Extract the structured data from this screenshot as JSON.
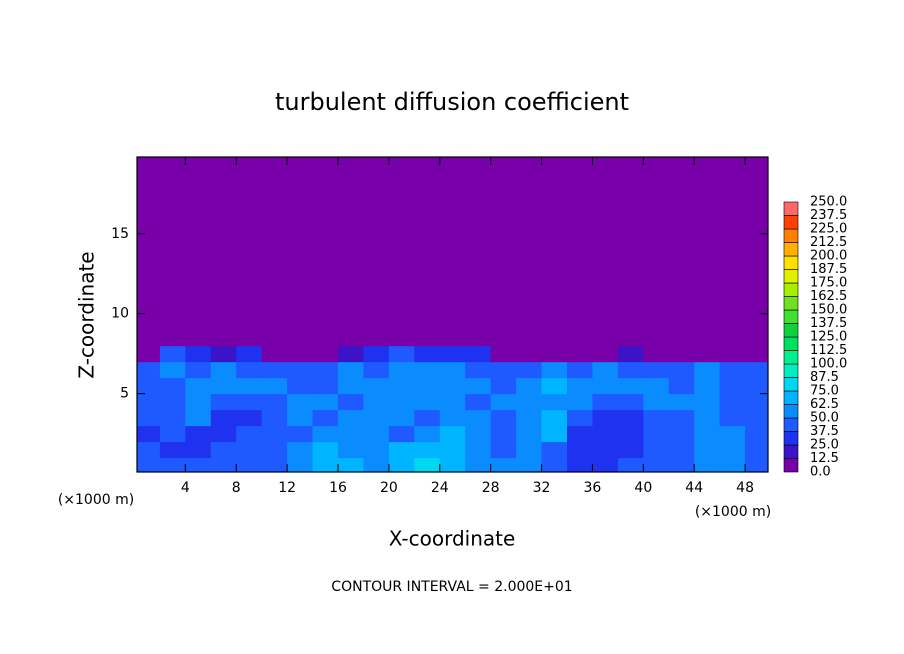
{
  "chart_data": {
    "type": "contour",
    "title": "turbulent diffusion coefficient",
    "x_label": "X-coordinate",
    "y_label": "Z-coordinate",
    "x_unit_left": "(×1000 m)",
    "x_unit_right": "(×1000 m)",
    "footer": "CONTOUR INTERVAL = 2.000E+01",
    "xlim": [
      0.2,
      49.8
    ],
    "ylim": [
      0.1,
      19.8
    ],
    "xticks": [
      4,
      8,
      12,
      16,
      20,
      24,
      28,
      32,
      36,
      40,
      44,
      48
    ],
    "yticks": [
      5,
      10,
      15
    ],
    "grid_field": {
      "x_edges": [
        0,
        2,
        4,
        6,
        8,
        10,
        12,
        14,
        16,
        18,
        20,
        22,
        24,
        26,
        28,
        30,
        32,
        34,
        36,
        38,
        40,
        42,
        44,
        46,
        48,
        50
      ],
      "y_edges": [
        0,
        1,
        2,
        3,
        4,
        5,
        6,
        7,
        8,
        20
      ],
      "values": [
        [
          40,
          40,
          38,
          40,
          42,
          45,
          55,
          70,
          65,
          60,
          70,
          75,
          70,
          60,
          55,
          50,
          40,
          35,
          35,
          38,
          40,
          45,
          55,
          60,
          40
        ],
        [
          38,
          35,
          35,
          38,
          40,
          42,
          50,
          65,
          55,
          50,
          65,
          70,
          65,
          55,
          45,
          60,
          40,
          35,
          35,
          35,
          38,
          45,
          60,
          55,
          45
        ],
        [
          35,
          40,
          35,
          35,
          38,
          40,
          45,
          55,
          60,
          55,
          45,
          55,
          65,
          50,
          40,
          60,
          70,
          35,
          35,
          35,
          40,
          45,
          55,
          50,
          45
        ],
        [
          40,
          45,
          50,
          35,
          35,
          40,
          50,
          45,
          50,
          60,
          55,
          45,
          50,
          55,
          40,
          55,
          65,
          40,
          35,
          35,
          45,
          40,
          50,
          45,
          40
        ],
        [
          45,
          40,
          55,
          45,
          40,
          45,
          55,
          50,
          45,
          50,
          60,
          55,
          50,
          45,
          50,
          60,
          55,
          55,
          45,
          45,
          50,
          55,
          60,
          45,
          40
        ],
        [
          40,
          45,
          50,
          55,
          55,
          50,
          45,
          45,
          50,
          55,
          60,
          55,
          55,
          50,
          45,
          55,
          65,
          60,
          55,
          50,
          55,
          45,
          55,
          40,
          45
        ],
        [
          45,
          50,
          45,
          50,
          45,
          40,
          40,
          45,
          50,
          45,
          50,
          55,
          50,
          45,
          40,
          40,
          55,
          45,
          50,
          45,
          40,
          45,
          50,
          40,
          40
        ],
        [
          10,
          40,
          30,
          20,
          30,
          10,
          10,
          5,
          20,
          30,
          40,
          35,
          30,
          25,
          10,
          5,
          5,
          5,
          10,
          20,
          5,
          5,
          10,
          5,
          5
        ],
        [
          5,
          5,
          5,
          5,
          5,
          5,
          5,
          5,
          5,
          5,
          5,
          5,
          5,
          5,
          5,
          5,
          5,
          5,
          5,
          5,
          5,
          5,
          5,
          5,
          5
        ]
      ]
    },
    "colorbar": {
      "levels": [
        {
          "value": 0,
          "label": "0.0"
        },
        12.5,
        {
          "value": 25,
          "label": "25.0"
        },
        37.5,
        {
          "value": 50,
          "label": "50.0"
        },
        62.5,
        {
          "value": 75,
          "label": "75.0"
        },
        87.5,
        {
          "value": 100,
          "label": "100.0"
        },
        112.5,
        {
          "value": 125,
          "label": "125.0"
        },
        137.5,
        {
          "value": 150,
          "label": "150.0"
        },
        162.5,
        {
          "value": 175,
          "label": "175.0"
        },
        187.5,
        {
          "value": 200,
          "label": "200.0"
        },
        212.5,
        {
          "value": 225,
          "label": "225.0"
        },
        237.5,
        {
          "value": 250,
          "label": "250.0"
        }
      ],
      "colors": [
        "#7800a8",
        "#3c14c8",
        "#1e32f0",
        "#1e5aff",
        "#0a8cff",
        "#00b4ff",
        "#00d8f0",
        "#00eec0",
        "#00f090",
        "#00e060",
        "#10d040",
        "#40e030",
        "#70e020",
        "#a8f000",
        "#e0f000",
        "#ffe000",
        "#ffb000",
        "#ff8000",
        "#ff4000",
        "#ff6868"
      ]
    }
  }
}
